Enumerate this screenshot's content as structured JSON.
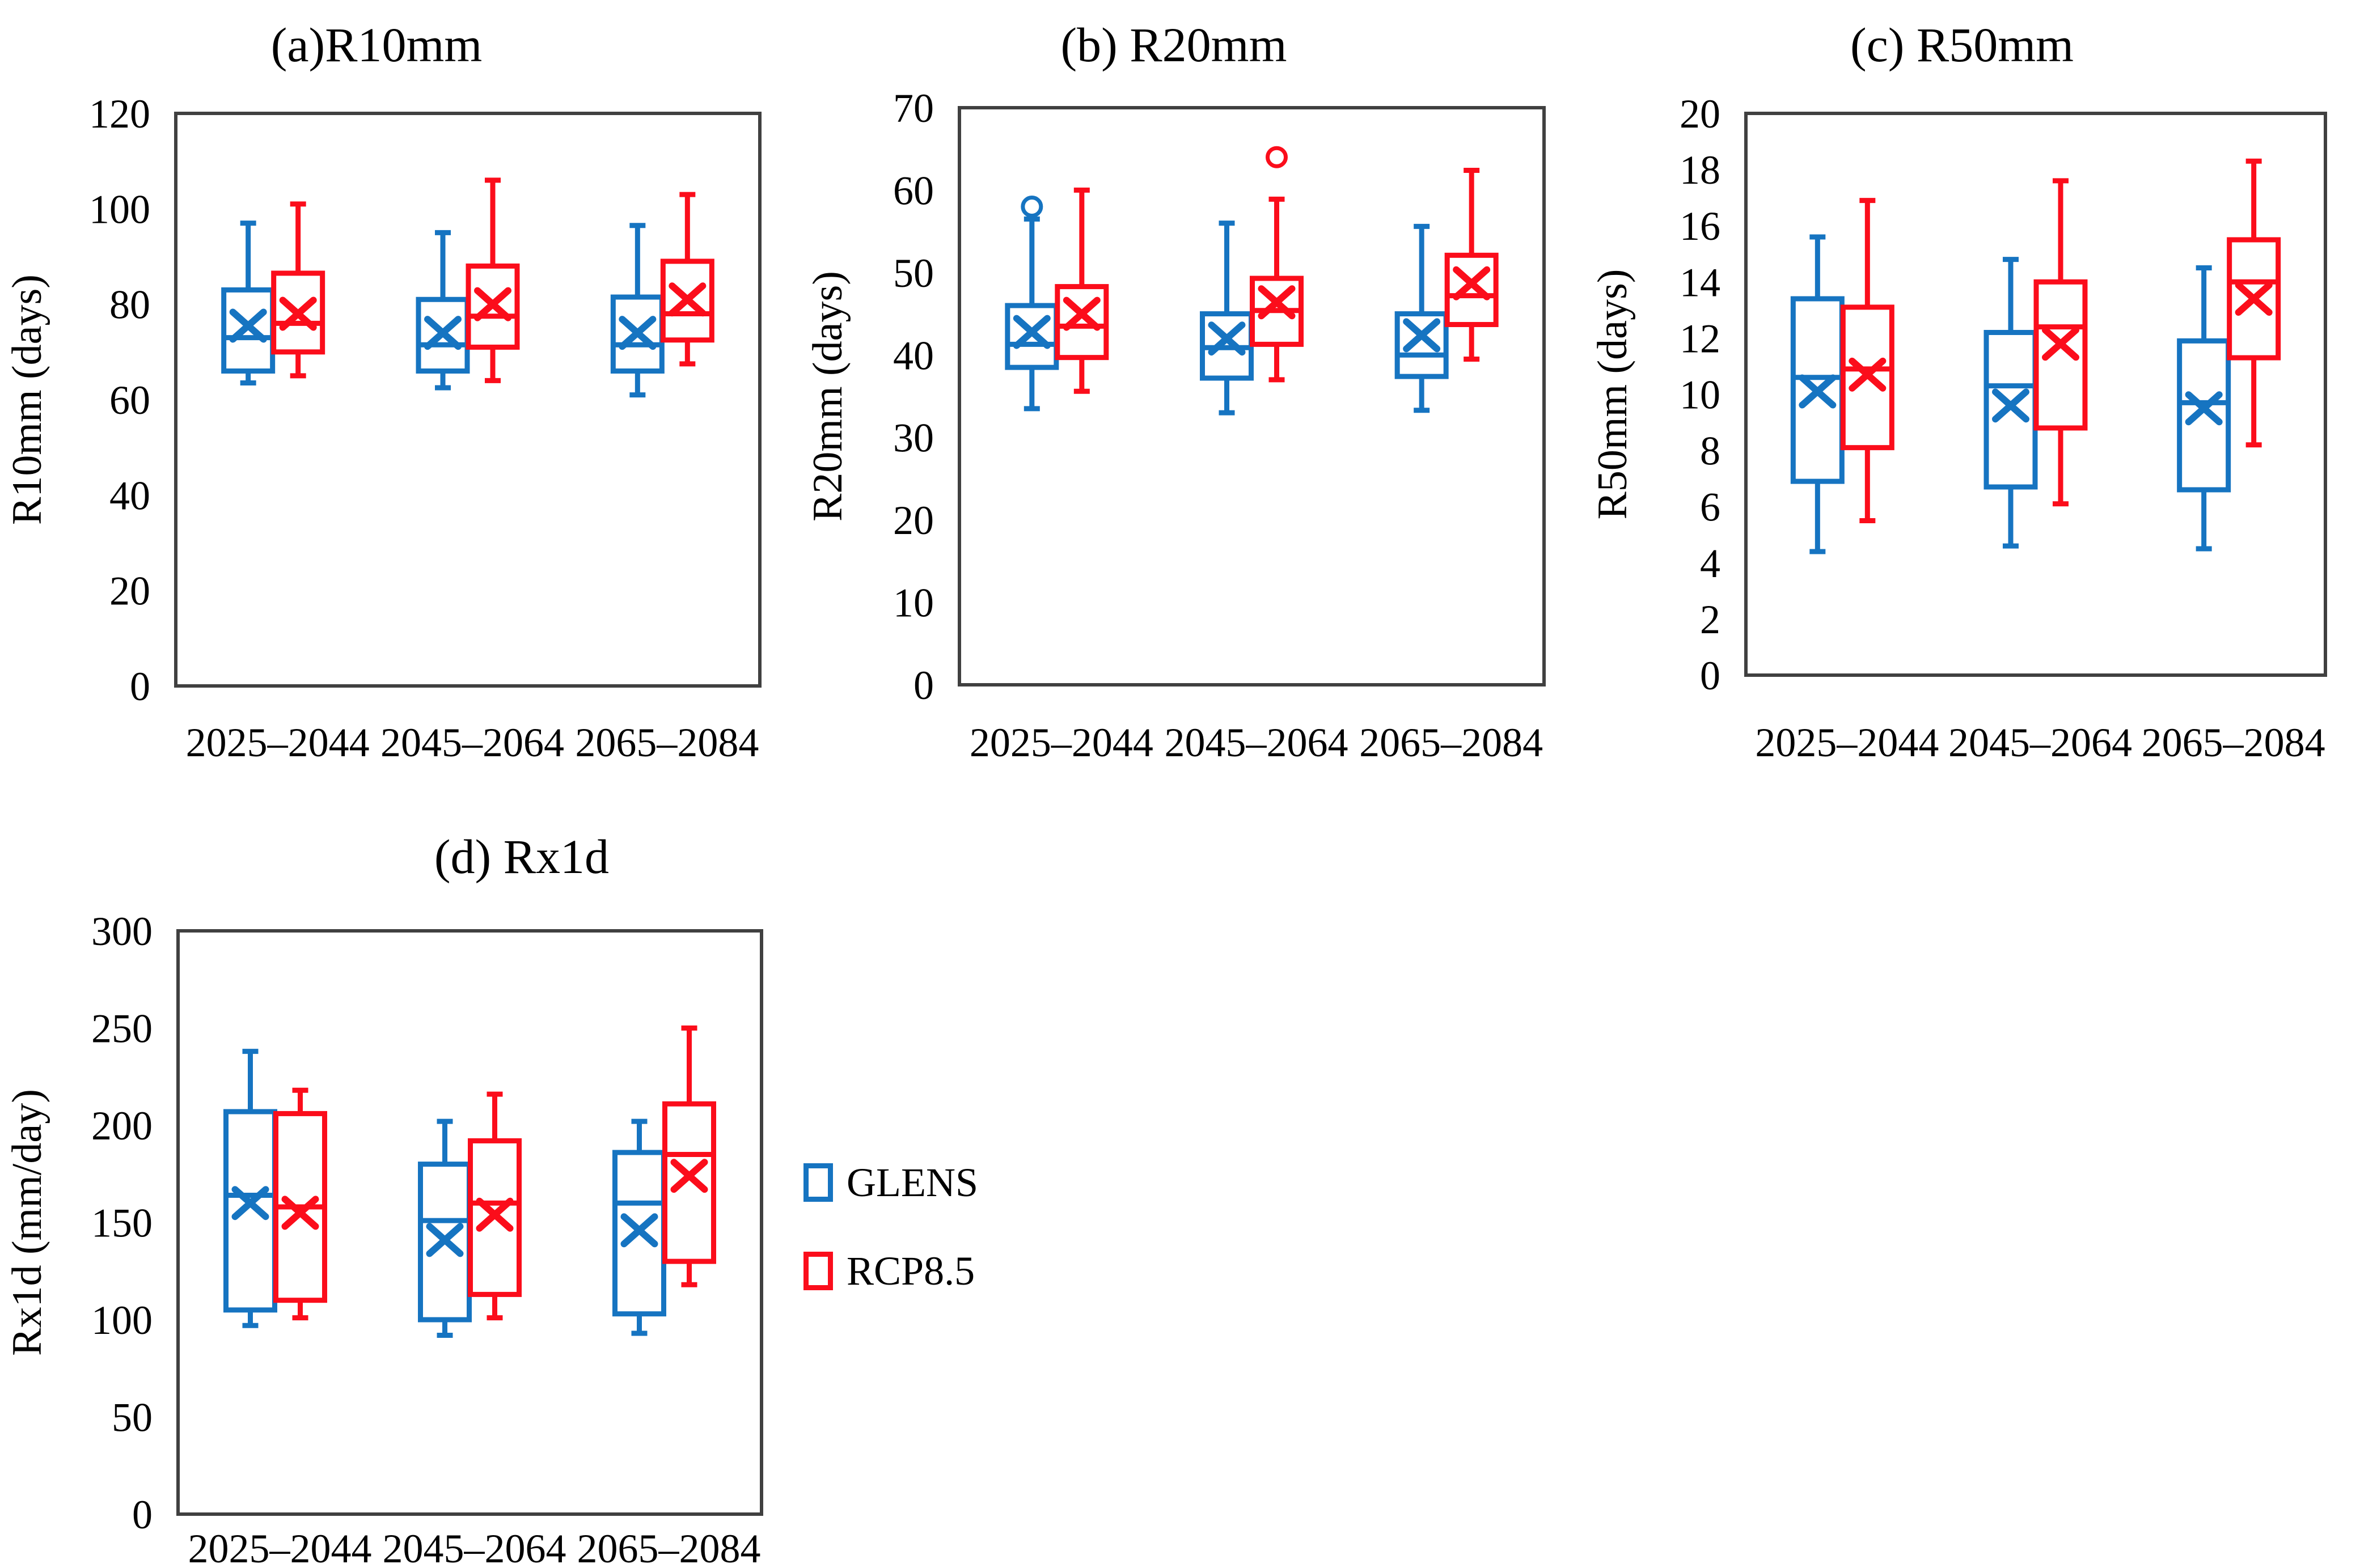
{
  "figure": {
    "background": "#FFFFFF"
  },
  "colors": {
    "glens": "#1674C1",
    "rcp85": "#FB0D1B",
    "axis": "#404040",
    "text": "#000000"
  },
  "legend": {
    "position": "right-of-panel-d",
    "items": [
      {
        "label": "GLENS",
        "color_key": "glens"
      },
      {
        "label": "RCP8.5",
        "color_key": "rcp85"
      }
    ]
  },
  "chart_data": [
    {
      "id": "a",
      "type": "box",
      "title": "(a)R10mm",
      "ylabel": "R10mm (days)",
      "ylim": [
        0,
        120
      ],
      "ytick_step": 20,
      "grid": false,
      "categories": [
        "2025–2044",
        "2045–2064",
        "2065–2084"
      ],
      "series": [
        {
          "name": "GLENS",
          "color_key": "glens",
          "boxes": [
            {
              "min": 63.5,
              "q1": 66,
              "median": 73,
              "q3": 83,
              "max": 97,
              "mean": 75.5,
              "outliers": []
            },
            {
              "min": 62.5,
              "q1": 66,
              "median": 71.5,
              "q3": 81,
              "max": 95,
              "mean": 74,
              "outliers": []
            },
            {
              "min": 61,
              "q1": 66,
              "median": 71.5,
              "q3": 81.5,
              "max": 96.5,
              "mean": 74,
              "outliers": []
            }
          ]
        },
        {
          "name": "RCP8.5",
          "color_key": "rcp85",
          "boxes": [
            {
              "min": 65,
              "q1": 70,
              "median": 76,
              "q3": 86.5,
              "max": 101,
              "mean": 78,
              "outliers": []
            },
            {
              "min": 64,
              "q1": 71,
              "median": 77.5,
              "q3": 88,
              "max": 106,
              "mean": 80,
              "outliers": []
            },
            {
              "min": 67.5,
              "q1": 72.5,
              "median": 78,
              "q3": 89,
              "max": 103,
              "mean": 81,
              "outliers": []
            }
          ]
        }
      ]
    },
    {
      "id": "b",
      "type": "box",
      "title": "(b) R20mm",
      "ylabel": "R20mm (days)",
      "ylim": [
        0,
        70
      ],
      "ytick_step": 10,
      "grid": false,
      "categories": [
        "2025–2044",
        "2045–2064",
        "2065–2084"
      ],
      "series": [
        {
          "name": "GLENS",
          "color_key": "glens",
          "boxes": [
            {
              "min": 33.5,
              "q1": 38.5,
              "median": 41.3,
              "q3": 46,
              "max": 56.5,
              "mean": 42.8,
              "outliers": [
                58
              ]
            },
            {
              "min": 33,
              "q1": 37.2,
              "median": 40.9,
              "q3": 45,
              "max": 56,
              "mean": 42,
              "outliers": []
            },
            {
              "min": 33.3,
              "q1": 37.4,
              "median": 40,
              "q3": 45,
              "max": 55.6,
              "mean": 42.4,
              "outliers": []
            }
          ]
        },
        {
          "name": "RCP8.5",
          "color_key": "rcp85",
          "boxes": [
            {
              "min": 35.6,
              "q1": 39.7,
              "median": 43.5,
              "q3": 48.3,
              "max": 60,
              "mean": 45,
              "outliers": []
            },
            {
              "min": 37,
              "q1": 41.3,
              "median": 45.4,
              "q3": 49.3,
              "max": 58.9,
              "mean": 46.4,
              "outliers": [
                64
              ]
            },
            {
              "min": 39.5,
              "q1": 43.7,
              "median": 47.2,
              "q3": 52.1,
              "max": 62.4,
              "mean": 48.7,
              "outliers": []
            }
          ]
        }
      ]
    },
    {
      "id": "c",
      "type": "box",
      "title": "(c) R50mm",
      "ylabel": "R50mm (days)",
      "ylim": [
        0,
        20
      ],
      "ytick_step": 2,
      "grid": false,
      "categories": [
        "2025–2044",
        "2045–2064",
        "2065–2084"
      ],
      "series": [
        {
          "name": "GLENS",
          "color_key": "glens",
          "boxes": [
            {
              "min": 4.4,
              "q1": 6.9,
              "median": 10.6,
              "q3": 13.4,
              "max": 15.6,
              "mean": 10.1,
              "outliers": []
            },
            {
              "min": 4.6,
              "q1": 6.7,
              "median": 10.3,
              "q3": 12.2,
              "max": 14.8,
              "mean": 9.6,
              "outliers": []
            },
            {
              "min": 4.5,
              "q1": 6.6,
              "median": 9.7,
              "q3": 11.9,
              "max": 14.5,
              "mean": 9.5,
              "outliers": []
            }
          ]
        },
        {
          "name": "RCP8.5",
          "color_key": "rcp85",
          "boxes": [
            {
              "min": 5.5,
              "q1": 8.1,
              "median": 10.9,
              "q3": 13.1,
              "max": 16.9,
              "mean": 10.7,
              "outliers": []
            },
            {
              "min": 6.1,
              "q1": 8.8,
              "median": 12.4,
              "q3": 14.0,
              "max": 17.6,
              "mean": 11.8,
              "outliers": []
            },
            {
              "min": 8.2,
              "q1": 11.3,
              "median": 14.0,
              "q3": 15.5,
              "max": 18.3,
              "mean": 13.4,
              "outliers": []
            }
          ]
        }
      ]
    },
    {
      "id": "d",
      "type": "box",
      "title": "(d) Rx1d",
      "ylabel": "Rx1d (mm/day)",
      "ylim": [
        0,
        300
      ],
      "ytick_step": 50,
      "grid": false,
      "categories": [
        "2025–2044",
        "2045–2064",
        "2065–2084"
      ],
      "series": [
        {
          "name": "GLENS",
          "color_key": "glens",
          "boxes": [
            {
              "min": 97,
              "q1": 105,
              "median": 164,
              "q3": 207,
              "max": 238,
              "mean": 160,
              "outliers": []
            },
            {
              "min": 92,
              "q1": 100,
              "median": 151,
              "q3": 180,
              "max": 202,
              "mean": 141,
              "outliers": []
            },
            {
              "min": 93,
              "q1": 103,
              "median": 160,
              "q3": 186,
              "max": 202,
              "mean": 146,
              "outliers": []
            }
          ]
        },
        {
          "name": "RCP8.5",
          "color_key": "rcp85",
          "boxes": [
            {
              "min": 101,
              "q1": 110,
              "median": 158,
              "q3": 206,
              "max": 218,
              "mean": 155,
              "outliers": []
            },
            {
              "min": 101,
              "q1": 113,
              "median": 160,
              "q3": 192,
              "max": 216,
              "mean": 154,
              "outliers": []
            },
            {
              "min": 118,
              "q1": 130,
              "median": 185,
              "q3": 211,
              "max": 250,
              "mean": 174,
              "outliers": []
            }
          ]
        }
      ]
    }
  ]
}
